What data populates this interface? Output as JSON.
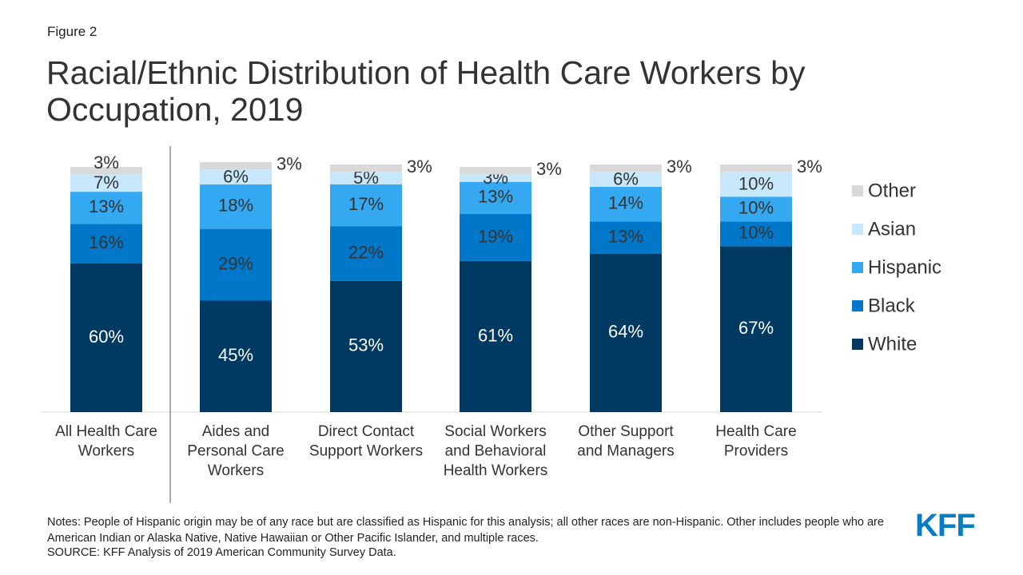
{
  "figure_label": "Figure 2",
  "title": "Racial/Ethnic Distribution of Health Care Workers by Occupation, 2019",
  "notes": "Notes: People of Hispanic origin may be of any race but are classified as Hispanic for this analysis; all other races are non-Hispanic. Other includes people who are American Indian or Alaska Native, Native Hawaiian or Other Pacific Islander, and multiple races.",
  "source": "SOURCE: KFF Analysis of 2019 American Community Survey Data.",
  "logo_text": "KFF",
  "colors": {
    "White": "#003a63",
    "Black": "#0077c8",
    "Hispanic": "#34a8f0",
    "Asian": "#c7e8fb",
    "Other": "#d9d9d9",
    "axis": "#d9d9d9",
    "divider": "#555555",
    "logo": "#0a7cc1"
  },
  "chart_data": {
    "type": "bar",
    "stacked": true,
    "percent_stacked": true,
    "categories": [
      [
        "All Health Care",
        "Workers"
      ],
      [
        "Aides and",
        "Personal Care",
        "Workers"
      ],
      [
        "Direct Contact",
        "Support Workers"
      ],
      [
        "Social Workers",
        "and Behavioral",
        "Health Workers"
      ],
      [
        "Other Support",
        "and Managers"
      ],
      [
        "Health Care",
        "Providers"
      ]
    ],
    "series": [
      {
        "name": "White",
        "values": [
          60,
          45,
          53,
          61,
          64,
          67
        ],
        "labels": [
          "60%",
          "45%",
          "53%",
          "61%",
          "64%",
          "67%"
        ]
      },
      {
        "name": "Black",
        "values": [
          16,
          29,
          22,
          19,
          13,
          10
        ],
        "labels": [
          "16%",
          "29%",
          "22%",
          "19%",
          "13%",
          "10%"
        ]
      },
      {
        "name": "Hispanic",
        "values": [
          13,
          18,
          17,
          13,
          14,
          10
        ],
        "labels": [
          "13%",
          "18%",
          "17%",
          "13%",
          "14%",
          "10%"
        ]
      },
      {
        "name": "Asian",
        "values": [
          7,
          6,
          5,
          3,
          6,
          10
        ],
        "labels": [
          "7%",
          "6%",
          "5%",
          "3%",
          "6%",
          "10%"
        ]
      },
      {
        "name": "Other",
        "values": [
          3,
          3,
          3,
          3,
          3,
          3
        ],
        "labels": [
          "3%",
          "3%",
          "3%",
          "3%",
          "3%",
          "3%"
        ]
      }
    ],
    "legend_order": [
      "Other",
      "Asian",
      "Hispanic",
      "Black",
      "White"
    ],
    "legend_position": "right",
    "ylim": [
      0,
      100
    ],
    "grid": false
  }
}
